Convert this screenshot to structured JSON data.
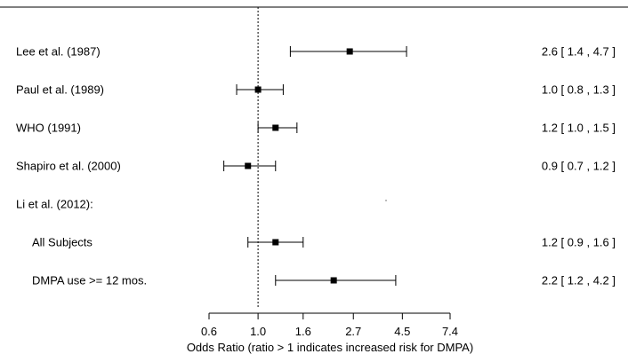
{
  "chart_data": {
    "type": "forest",
    "xlabel": "Odds Ratio (ratio > 1 indicates increased risk for DMPA)",
    "x_scale": "log",
    "xlim": [
      0.6,
      7.4
    ],
    "x_ticks": [
      0.6,
      1.0,
      1.6,
      2.7,
      4.5,
      7.4
    ],
    "x_tick_labels": [
      "0.6",
      "1.0",
      "1.6",
      "2.7",
      "4.5",
      "7.4"
    ],
    "reference_line": 1.0,
    "rows": [
      {
        "label": "Lee et al. (1987)",
        "or": 2.6,
        "lower": 1.4,
        "upper": 4.7,
        "ci_text": "2.6 [ 1.4 , 4.7 ]",
        "indent": false
      },
      {
        "label": "Paul et al. (1989)",
        "or": 1.0,
        "lower": 0.8,
        "upper": 1.3,
        "ci_text": "1.0 [ 0.8 , 1.3 ]",
        "indent": false
      },
      {
        "label": "WHO (1991)",
        "or": 1.2,
        "lower": 1.0,
        "upper": 1.5,
        "ci_text": "1.2 [ 1.0 , 1.5 ]",
        "indent": false
      },
      {
        "label": "Shapiro et al. (2000)",
        "or": 0.9,
        "lower": 0.7,
        "upper": 1.2,
        "ci_text": "0.9 [ 0.7 , 1.2 ]",
        "indent": false
      },
      {
        "label": "Li et al. (2012):",
        "or": null,
        "lower": null,
        "upper": null,
        "ci_text": "",
        "indent": false
      },
      {
        "label": "All Subjects",
        "or": 1.2,
        "lower": 0.9,
        "upper": 1.6,
        "ci_text": "1.2 [ 0.9 , 1.6 ]",
        "indent": true
      },
      {
        "label": "DMPA use >= 12 mos.",
        "or": 2.2,
        "lower": 1.2,
        "upper": 4.2,
        "ci_text": "2.2 [ 1.2 , 4.2 ]",
        "indent": true
      }
    ]
  }
}
